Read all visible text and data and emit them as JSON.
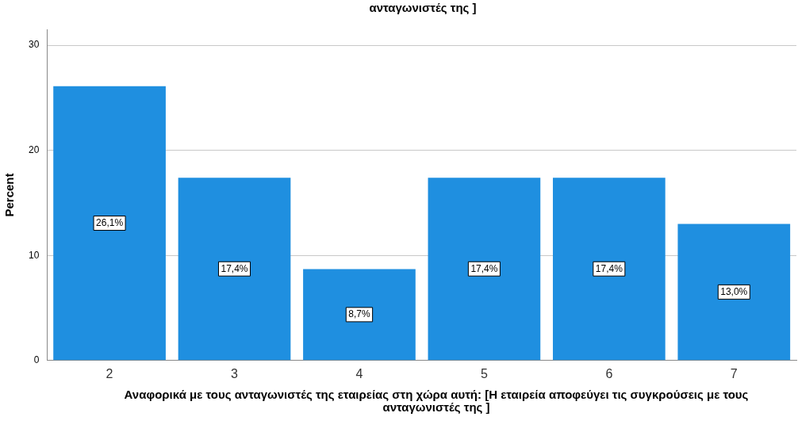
{
  "chart_data": {
    "type": "bar",
    "title": "ανταγωνιστές της ]",
    "xlabel": "Αναφορικά με τους ανταγωνιστές της εταιρείας στη χώρα αυτή: [Η εταιρεία αποφεύγει τις συγκρούσεις με τους ανταγωνιστές της ]",
    "ylabel": "Percent",
    "categories": [
      "2",
      "3",
      "4",
      "5",
      "6",
      "7"
    ],
    "values": [
      26.1,
      17.4,
      8.7,
      17.4,
      17.4,
      13.0
    ],
    "value_labels": [
      "26,1%",
      "17,4%",
      "8,7%",
      "17,4%",
      "17,4%",
      "13,0%"
    ],
    "color": "#1f8fe0",
    "ylim": [
      0,
      31.5
    ],
    "yticks": [
      0,
      10,
      20,
      30
    ],
    "grid": "y",
    "legend": false
  }
}
